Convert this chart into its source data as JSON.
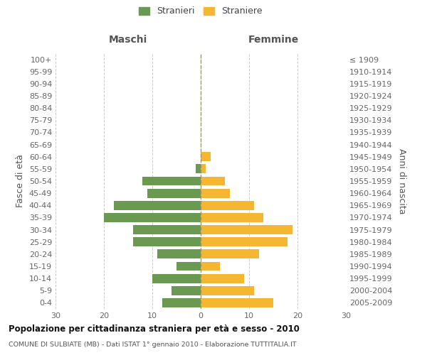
{
  "age_groups": [
    "0-4",
    "5-9",
    "10-14",
    "15-19",
    "20-24",
    "25-29",
    "30-34",
    "35-39",
    "40-44",
    "45-49",
    "50-54",
    "55-59",
    "60-64",
    "65-69",
    "70-74",
    "75-79",
    "80-84",
    "85-89",
    "90-94",
    "95-99",
    "100+"
  ],
  "birth_years": [
    "2005-2009",
    "2000-2004",
    "1995-1999",
    "1990-1994",
    "1985-1989",
    "1980-1984",
    "1975-1979",
    "1970-1974",
    "1965-1969",
    "1960-1964",
    "1955-1959",
    "1950-1954",
    "1945-1949",
    "1940-1944",
    "1935-1939",
    "1930-1934",
    "1925-1929",
    "1920-1924",
    "1915-1919",
    "1910-1914",
    "≤ 1909"
  ],
  "maschi": [
    8,
    6,
    10,
    5,
    9,
    14,
    14,
    20,
    18,
    11,
    12,
    1,
    0,
    0,
    0,
    0,
    0,
    0,
    0,
    0,
    0
  ],
  "femmine": [
    15,
    11,
    9,
    4,
    12,
    18,
    19,
    13,
    11,
    6,
    5,
    1,
    2,
    0,
    0,
    0,
    0,
    0,
    0,
    0,
    0
  ],
  "maschi_color": "#6a9a52",
  "femmine_color": "#f5b731",
  "grid_color": "#cccccc",
  "center_line_color": "#999966",
  "xlim": 30,
  "title": "Popolazione per cittadinanza straniera per età e sesso - 2010",
  "subtitle": "COMUNE DI SULBIATE (MB) - Dati ISTAT 1° gennaio 2010 - Elaborazione TUTTITALIA.IT",
  "ylabel_left": "Fasce di età",
  "ylabel_right": "Anni di nascita",
  "legend_maschi": "Stranieri",
  "legend_femmine": "Straniere",
  "header_maschi": "Maschi",
  "header_femmine": "Femmine",
  "bg_color": "#ffffff",
  "bar_height": 0.75
}
